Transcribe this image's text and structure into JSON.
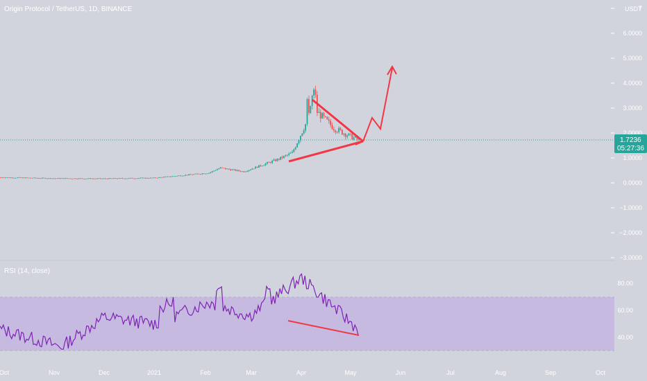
{
  "header": {
    "symbol_title": "Origin Protocol / TetherUS, 1D, BINANCE",
    "currency": "USDT"
  },
  "rsi": {
    "label": "RSI (14, close)"
  },
  "price_tag": {
    "price": "1.7236",
    "countdown": "05:27:36"
  },
  "colors": {
    "background": "#d1d4dc",
    "up": "#26a69a",
    "down": "#ef5350",
    "annotation": "#f23645",
    "rsi_line": "#7e22b5",
    "rsi_band": "#c5b7e0",
    "price_line": "#26a69a"
  },
  "chart_data": [
    {
      "type": "candlestick",
      "title": "Origin Protocol / TetherUS, 1D, BINANCE",
      "y_unit": "USDT",
      "ylim": [
        -3.0,
        7.0
      ],
      "y_ticks": [
        "7",
        "6.0000",
        "5.0000",
        "4.0000",
        "3.0000",
        "2.0000",
        "1.0000",
        "0.0000",
        "−1.0000",
        "−2.0000",
        "−3.0000"
      ],
      "y_tick_values": [
        7,
        6,
        5,
        4,
        3,
        2,
        1,
        0,
        -1,
        -2,
        -3
      ],
      "x_ticks": [
        "Oct",
        "Nov",
        "Dec",
        "2021",
        "Feb",
        "Mar",
        "Apr",
        "May",
        "Jun",
        "Jul",
        "Aug",
        "Sep",
        "Oct"
      ],
      "last_price": 1.7236,
      "series": [
        {
          "x": [
            "Oct",
            "Nov",
            "Dec",
            "2021",
            "Feb",
            "Feb",
            "Mar",
            "Mar",
            "Apr",
            "Apr",
            "Apr",
            "May",
            "May"
          ],
          "close": [
            0.22,
            0.18,
            0.17,
            0.2,
            0.4,
            0.6,
            0.45,
            0.95,
            1.2,
            3.0,
            2.2,
            1.85,
            1.72
          ]
        }
      ],
      "annotations": [
        "symmetrical triangle",
        "projected breakout path"
      ]
    },
    {
      "type": "line",
      "title": "RSI (14, close)",
      "ylim": [
        30,
        90
      ],
      "y_ticks": [
        "80.00",
        "60.00",
        "40.00"
      ],
      "y_tick_values": [
        80,
        60,
        40
      ],
      "band": [
        30,
        70
      ],
      "series": [
        {
          "x": [
            "Oct",
            "Nov",
            "Dec",
            "2021",
            "Feb",
            "Mar",
            "Apr",
            "May"
          ],
          "values": [
            46,
            33,
            55,
            50,
            66,
            56,
            84,
            46
          ]
        }
      ],
      "annotations": [
        "bearish divergence line"
      ]
    }
  ]
}
